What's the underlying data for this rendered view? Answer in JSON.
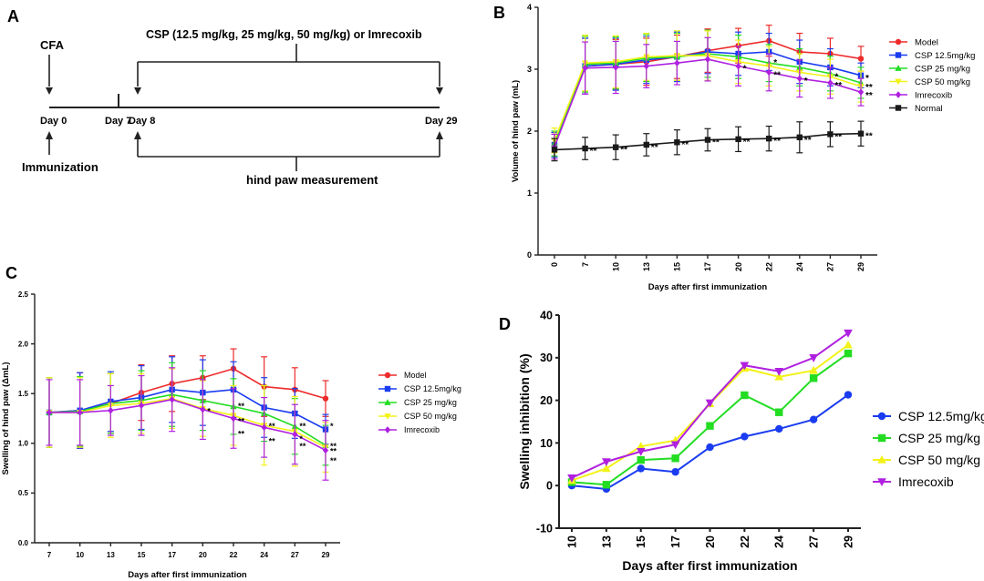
{
  "colors": {
    "model": "#ee2b2b",
    "csp125": "#1a3cf0",
    "csp25": "#22dd22",
    "csp50": "#f2f21a",
    "imrecoxib": "#b020e0",
    "normal": "#1a1a1a",
    "axis": "#222222"
  },
  "timeline": {
    "panel_label": "A",
    "cfa_label": "CFA",
    "treatment_label": "CSP (12.5 mg/kg, 25 mg/kg, 50 mg/kg) or Imrecoxib",
    "days": [
      "Day 0",
      "Day 7",
      "Day 8",
      "Day 29"
    ],
    "immunization_label": "Immunization",
    "measurement_label": "hind paw measurement"
  },
  "chart_data": [
    {
      "id": "B",
      "panel_label": "B",
      "type": "line",
      "title": "",
      "xlabel": "Days after first immunization",
      "ylabel": "Volume of hind paw (mL)",
      "categories": [
        "0",
        "7",
        "10",
        "13",
        "15",
        "17",
        "20",
        "22",
        "24",
        "27",
        "29"
      ],
      "ylim": [
        0,
        4
      ],
      "yticks": [
        "0",
        "1",
        "2",
        "3",
        "4"
      ],
      "legend_position": "top-right",
      "series": [
        {
          "name": "Model",
          "color_key": "model",
          "marker": "circle",
          "values": [
            1.75,
            3.05,
            3.08,
            3.12,
            3.2,
            3.3,
            3.38,
            3.46,
            3.28,
            3.25,
            3.17
          ],
          "err": [
            0.2,
            0.45,
            0.4,
            0.38,
            0.35,
            0.35,
            0.28,
            0.25,
            0.3,
            0.25,
            0.2
          ]
        },
        {
          "name": "CSP 12.5mg/kg",
          "color_key": "csp125",
          "marker": "square",
          "values": [
            1.78,
            3.05,
            3.08,
            3.15,
            3.2,
            3.28,
            3.25,
            3.28,
            3.12,
            3.03,
            2.9
          ],
          "err": [
            0.2,
            0.45,
            0.42,
            0.38,
            0.4,
            0.35,
            0.35,
            0.3,
            0.35,
            0.3,
            0.2
          ]
        },
        {
          "name": "CSP 25 mg/kg",
          "color_key": "csp25",
          "marker": "triangle",
          "values": [
            1.8,
            3.08,
            3.1,
            3.18,
            3.2,
            3.25,
            3.2,
            3.1,
            3.03,
            2.93,
            2.78
          ],
          "err": [
            0.2,
            0.45,
            0.42,
            0.38,
            0.38,
            0.38,
            0.35,
            0.3,
            0.3,
            0.28,
            0.25
          ]
        },
        {
          "name": "CSP 50 mg/kg",
          "color_key": "csp50",
          "marker": "triangle-down",
          "values": [
            1.85,
            3.1,
            3.12,
            3.2,
            3.22,
            3.22,
            3.12,
            3.05,
            2.95,
            2.88,
            2.72
          ],
          "err": [
            0.2,
            0.45,
            0.42,
            0.38,
            0.4,
            0.4,
            0.35,
            0.32,
            0.3,
            0.28,
            0.25
          ]
        },
        {
          "name": "Imrecoxib",
          "color_key": "imrecoxib",
          "marker": "diamond",
          "values": [
            1.75,
            3.02,
            3.03,
            3.05,
            3.1,
            3.16,
            3.05,
            2.95,
            2.85,
            2.78,
            2.63
          ],
          "err": [
            0.2,
            0.42,
            0.42,
            0.35,
            0.35,
            0.35,
            0.32,
            0.3,
            0.3,
            0.25,
            0.22
          ]
        },
        {
          "name": "Normal",
          "color_key": "normal",
          "marker": "square",
          "values": [
            1.7,
            1.72,
            1.74,
            1.78,
            1.82,
            1.86,
            1.87,
            1.88,
            1.9,
            1.95,
            1.96
          ],
          "err": [
            0.18,
            0.18,
            0.2,
            0.18,
            0.2,
            0.18,
            0.2,
            0.2,
            0.25,
            0.2,
            0.2
          ]
        }
      ],
      "annotations": [
        {
          "cat": "7",
          "y": 1.72,
          "text": "**"
        },
        {
          "cat": "10",
          "y": 1.74,
          "text": "**"
        },
        {
          "cat": "13",
          "y": 1.78,
          "text": "**"
        },
        {
          "cat": "15",
          "y": 1.82,
          "text": "**"
        },
        {
          "cat": "17",
          "y": 1.86,
          "text": "**"
        },
        {
          "cat": "20",
          "y": 1.87,
          "text": "**"
        },
        {
          "cat": "22",
          "y": 1.88,
          "text": "**"
        },
        {
          "cat": "24",
          "y": 1.9,
          "text": "**"
        },
        {
          "cat": "27",
          "y": 1.95,
          "text": "**"
        },
        {
          "cat": "29",
          "y": 1.96,
          "text": "**"
        },
        {
          "cat": "20",
          "y": 3.05,
          "text": "*"
        },
        {
          "cat": "22",
          "y": 3.15,
          "text": "*"
        },
        {
          "cat": "22",
          "y": 2.95,
          "text": "**"
        },
        {
          "cat": "24",
          "y": 2.85,
          "text": "*"
        },
        {
          "cat": "27",
          "y": 2.92,
          "text": "*"
        },
        {
          "cat": "27",
          "y": 2.78,
          "text": "**"
        },
        {
          "cat": "29",
          "y": 2.9,
          "text": "*"
        },
        {
          "cat": "29",
          "y": 2.75,
          "text": "**"
        },
        {
          "cat": "29",
          "y": 2.62,
          "text": "**"
        }
      ]
    },
    {
      "id": "C",
      "panel_label": "C",
      "type": "line",
      "title": "",
      "xlabel": "Days after first immunization",
      "ylabel": "Swelling of hind paw (ΔmL)",
      "categories": [
        "7",
        "10",
        "13",
        "15",
        "17",
        "20",
        "22",
        "24",
        "27",
        "29"
      ],
      "ylim": [
        0,
        2.5
      ],
      "yticks": [
        "0.0",
        "0.5",
        "1.0",
        "1.5",
        "2.0",
        "2.5"
      ],
      "legend_position": "right",
      "series": [
        {
          "name": "Model",
          "color_key": "model",
          "marker": "circle",
          "values": [
            1.31,
            1.33,
            1.4,
            1.51,
            1.6,
            1.66,
            1.75,
            1.57,
            1.54,
            1.45
          ],
          "err": [
            0.35,
            0.38,
            0.3,
            0.28,
            0.28,
            0.22,
            0.2,
            0.3,
            0.22,
            0.18
          ]
        },
        {
          "name": "CSP 12.5mg/kg",
          "color_key": "csp125",
          "marker": "square",
          "values": [
            1.31,
            1.33,
            1.42,
            1.46,
            1.54,
            1.51,
            1.54,
            1.36,
            1.3,
            1.14
          ],
          "err": [
            0.35,
            0.38,
            0.3,
            0.32,
            0.33,
            0.33,
            0.28,
            0.3,
            0.25,
            0.15
          ]
        },
        {
          "name": "CSP 25 mg/kg",
          "color_key": "csp25",
          "marker": "triangle",
          "values": [
            1.31,
            1.32,
            1.4,
            1.43,
            1.49,
            1.43,
            1.37,
            1.3,
            1.17,
            0.98
          ],
          "err": [
            0.35,
            0.35,
            0.3,
            0.3,
            0.32,
            0.3,
            0.28,
            0.28,
            0.28,
            0.2
          ]
        },
        {
          "name": "CSP 50 mg/kg",
          "color_key": "csp50",
          "marker": "triangle-down",
          "values": [
            1.31,
            1.31,
            1.38,
            1.4,
            1.45,
            1.35,
            1.28,
            1.18,
            1.12,
            0.96
          ],
          "err": [
            0.35,
            0.35,
            0.32,
            0.3,
            0.3,
            0.28,
            0.3,
            0.4,
            0.35,
            0.25
          ]
        },
        {
          "name": "Imrecoxib",
          "color_key": "imrecoxib",
          "marker": "diamond",
          "values": [
            1.31,
            1.31,
            1.33,
            1.38,
            1.44,
            1.34,
            1.25,
            1.16,
            1.09,
            0.93
          ],
          "err": [
            0.33,
            0.33,
            0.25,
            0.3,
            0.32,
            0.3,
            0.3,
            0.3,
            0.3,
            0.3
          ]
        }
      ],
      "annotations": [
        {
          "cat": "20",
          "y": 1.35,
          "text": "*"
        },
        {
          "cat": "22",
          "y": 1.4,
          "text": "**"
        },
        {
          "cat": "22",
          "y": 1.25,
          "text": "**"
        },
        {
          "cat": "22",
          "y": 1.12,
          "text": "**"
        },
        {
          "cat": "24",
          "y": 1.2,
          "text": "**"
        },
        {
          "cat": "24",
          "y": 1.05,
          "text": "**"
        },
        {
          "cat": "27",
          "y": 1.2,
          "text": "**"
        },
        {
          "cat": "27",
          "y": 1.07,
          "text": "*"
        },
        {
          "cat": "27",
          "y": 1.0,
          "text": "**"
        },
        {
          "cat": "29",
          "y": 1.2,
          "text": "*"
        },
        {
          "cat": "29",
          "y": 1.0,
          "text": "**"
        },
        {
          "cat": "29",
          "y": 0.95,
          "text": "**"
        },
        {
          "cat": "29",
          "y": 0.85,
          "text": "**"
        }
      ]
    },
    {
      "id": "D",
      "panel_label": "D",
      "type": "line",
      "title": "",
      "xlabel": "Days after first immunization",
      "ylabel": "Swelling inhibition (%)",
      "categories": [
        "10",
        "13",
        "15",
        "17",
        "20",
        "22",
        "24",
        "27",
        "29"
      ],
      "ylim": [
        -10,
        40
      ],
      "yticks": [
        "-10",
        "0",
        "10",
        "20",
        "30",
        "40"
      ],
      "legend_position": "right",
      "series": [
        {
          "name": "CSP 12.5mg/kg",
          "color_key": "csp125",
          "marker": "circle",
          "values": [
            0,
            -0.8,
            4,
            3.2,
            9,
            11.5,
            13.3,
            15.5,
            21.3
          ]
        },
        {
          "name": "CSP 25 mg/kg",
          "color_key": "csp25",
          "marker": "square",
          "values": [
            0.8,
            0.2,
            6,
            6.4,
            14,
            21.2,
            17.2,
            25.2,
            31
          ]
        },
        {
          "name": "CSP 50 mg/kg",
          "color_key": "csp50",
          "marker": "triangle",
          "values": [
            1.2,
            4,
            9.2,
            10.6,
            19.2,
            27.5,
            25.5,
            27,
            33
          ]
        },
        {
          "name": "Imrecoxib",
          "color_key": "imrecoxib",
          "marker": "triangle-down",
          "values": [
            1.8,
            5.6,
            8,
            9.6,
            19.4,
            28.2,
            26.8,
            30,
            35.8
          ]
        }
      ],
      "annotations": []
    }
  ]
}
